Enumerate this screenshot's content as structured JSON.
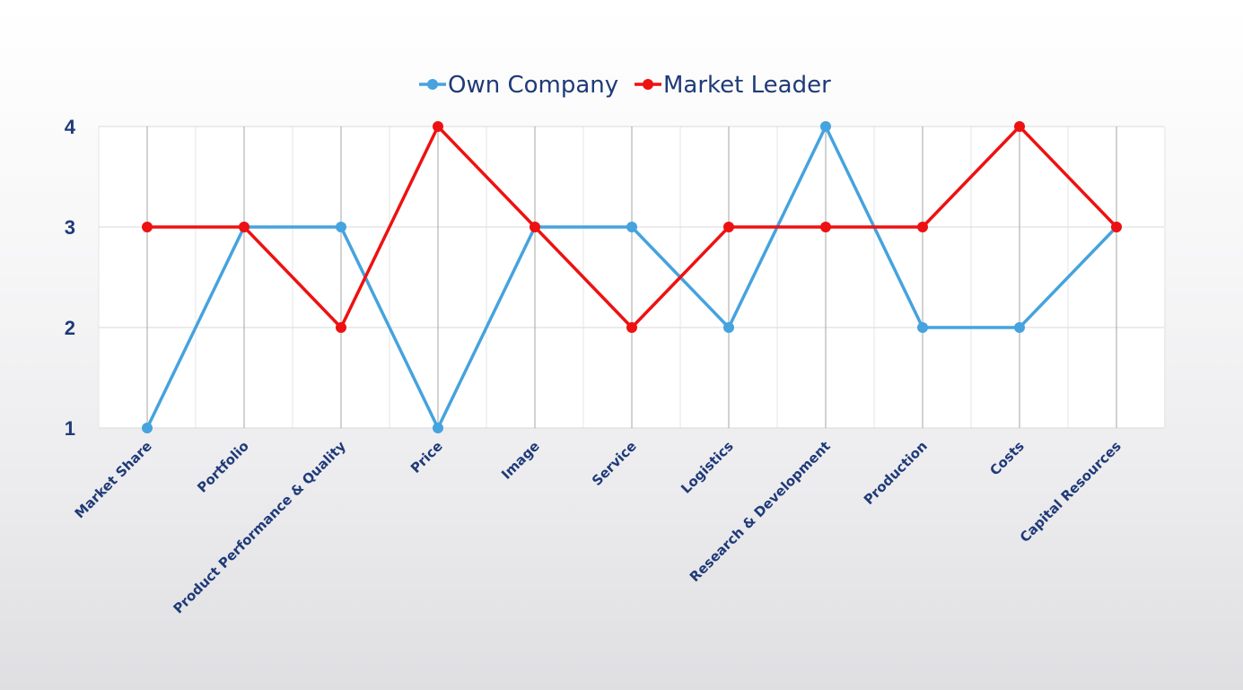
{
  "chart_data": {
    "type": "line",
    "categories": [
      "Market Share",
      "Portfolio",
      "Product Performance & Quality",
      "Price",
      "Image",
      "Service",
      "Logistics",
      "Research & Development",
      "Production",
      "Costs",
      "Capital Resources"
    ],
    "series": [
      {
        "name": "Own Company",
        "color": "#45a3de",
        "values": [
          1,
          3,
          3,
          1,
          3,
          3,
          2,
          4,
          2,
          2,
          3
        ]
      },
      {
        "name": "Market Leader",
        "color": "#ee1111",
        "values": [
          3,
          3,
          2,
          4,
          3,
          2,
          3,
          3,
          3,
          4,
          3
        ]
      }
    ],
    "ylim": [
      1,
      4
    ],
    "yticks": [
      "1",
      "2",
      "3",
      "4"
    ],
    "grid": true,
    "legend_position": "top-center"
  }
}
